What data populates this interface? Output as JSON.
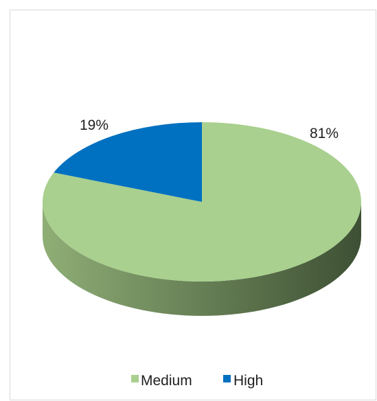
{
  "chart_data": {
    "type": "pie",
    "style": "3d",
    "title": "",
    "slices": [
      {
        "label": "Medium",
        "value": 81,
        "display": "81%",
        "color": "#a9d08e"
      },
      {
        "label": "High",
        "value": 19,
        "display": "19%",
        "color": "#0070c0"
      }
    ],
    "legend": {
      "position": "bottom",
      "entries": [
        "Medium",
        "High"
      ]
    },
    "side_colors": {
      "Medium": [
        "#8fae76",
        "#3e5034"
      ],
      "High": [
        "#005a9a",
        "#003a66"
      ]
    }
  }
}
